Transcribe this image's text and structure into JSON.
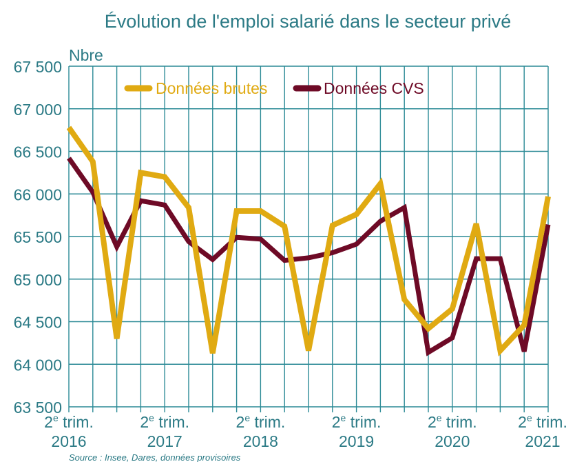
{
  "chart_data": {
    "type": "line",
    "title": "Évolution de l'emploi salarié dans le secteur privé",
    "ylabel": "Nbre",
    "xlabel": "",
    "ylim": [
      63500,
      67500
    ],
    "yticks": [
      67500,
      67000,
      66500,
      66000,
      65500,
      65000,
      64500,
      64000,
      63500
    ],
    "ytick_labels": [
      "67 500",
      "67 000",
      "66 500",
      "66 000",
      "65 500",
      "65 000",
      "64 500",
      "64 000",
      "63 500"
    ],
    "x": [
      0,
      1,
      2,
      3,
      4,
      5,
      6,
      7,
      8,
      9,
      10,
      11,
      12,
      13,
      14,
      15,
      16,
      17,
      18,
      19,
      20
    ],
    "xticks": [
      {
        "x": 0,
        "line1": "2e trim.",
        "line2": "2016"
      },
      {
        "x": 4,
        "line1": "2e trim.",
        "line2": "2017"
      },
      {
        "x": 8,
        "line1": "2e trim.",
        "line2": "2018"
      },
      {
        "x": 12,
        "line1": "2e trim.",
        "line2": "2019"
      },
      {
        "x": 16,
        "line1": "2e trim.",
        "line2": "2020"
      },
      {
        "x": 20,
        "line1": "2e trim.",
        "line2": "2021"
      }
    ],
    "series": [
      {
        "name": "Données brutes",
        "color": "#e0aa12",
        "values": [
          66780,
          66380,
          64300,
          66250,
          66200,
          65840,
          64130,
          65800,
          65800,
          65620,
          64160,
          65630,
          65760,
          66120,
          64760,
          64420,
          64650,
          65650,
          64160,
          64460,
          65970
        ]
      },
      {
        "name": "Données CVS",
        "color": "#6e0a26",
        "values": [
          66420,
          66020,
          65380,
          65920,
          65870,
          65440,
          65230,
          65490,
          65470,
          65220,
          65250,
          65310,
          65410,
          65680,
          65840,
          64140,
          64310,
          65240,
          65240,
          64150,
          65640
        ]
      }
    ],
    "legend_position": "top"
  },
  "source_note": "Source : Insee, Dares, données provisoires"
}
